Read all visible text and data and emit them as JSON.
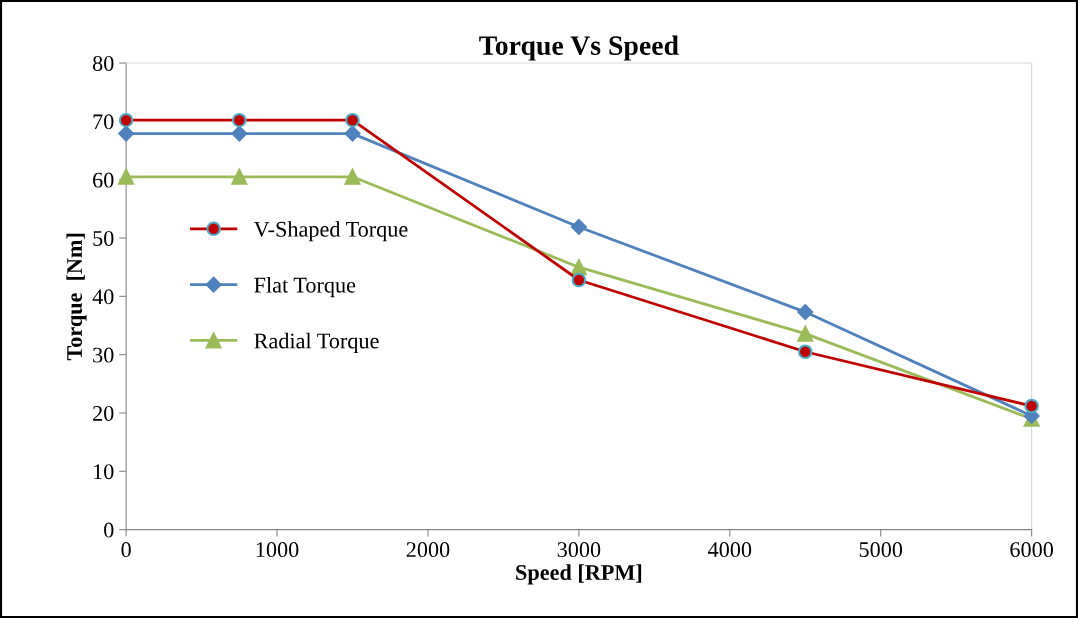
{
  "chart_data": {
    "type": "line",
    "title": "Torque Vs Speed",
    "xlabel": "Speed [RPM]",
    "ylabel": "Torque  [Nm]",
    "x": [
      0,
      750,
      1500,
      3000,
      4500,
      6000
    ],
    "series": [
      {
        "name": "V-Shaped Torque",
        "color": "#c00000",
        "marker": "circle",
        "values": [
          70.2,
          70.2,
          70.2,
          42.8,
          30.5,
          21.2
        ]
      },
      {
        "name": "Flat Torque",
        "color": "#4f81bd",
        "marker": "diamond",
        "values": [
          67.9,
          67.9,
          67.9,
          51.9,
          37.3,
          19.5
        ]
      },
      {
        "name": "Radial Torque",
        "color": "#9bbb59",
        "marker": "triangle",
        "values": [
          60.5,
          60.5,
          60.5,
          45.0,
          33.6,
          19.0
        ]
      }
    ],
    "xlim": [
      0,
      6000
    ],
    "xticks": [
      0,
      1000,
      2000,
      3000,
      4000,
      5000,
      6000
    ],
    "ylim": [
      0,
      80
    ],
    "yticks": [
      0,
      10,
      20,
      30,
      40,
      50,
      60,
      70,
      80
    ],
    "grid": false,
    "legend": "left",
    "line_style": "solid"
  }
}
